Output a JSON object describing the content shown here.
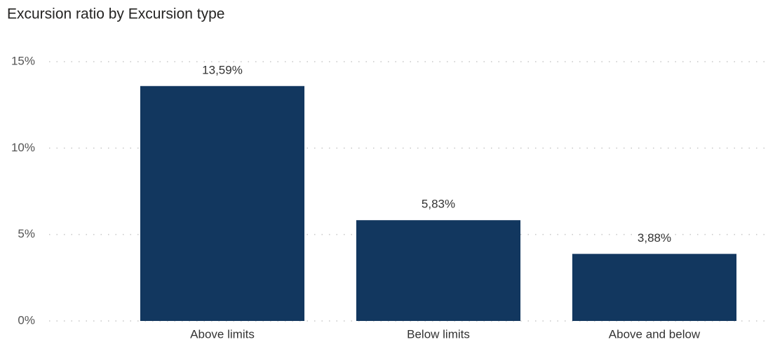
{
  "chart_data": {
    "type": "bar",
    "title": "Excursion ratio by Excursion type",
    "categories": [
      "Above limits",
      "Below limits",
      "Above and below"
    ],
    "values": [
      13.59,
      5.83,
      3.88
    ],
    "value_labels": [
      "13,59%",
      "5,83%",
      "3,88%"
    ],
    "color": "#12375f",
    "ylim": [
      0,
      15
    ],
    "yticks": [
      {
        "value": 0,
        "label": "0%"
      },
      {
        "value": 5,
        "label": "5%"
      },
      {
        "value": 10,
        "label": "10%"
      },
      {
        "value": 15,
        "label": "15%"
      }
    ],
    "grid": true
  }
}
